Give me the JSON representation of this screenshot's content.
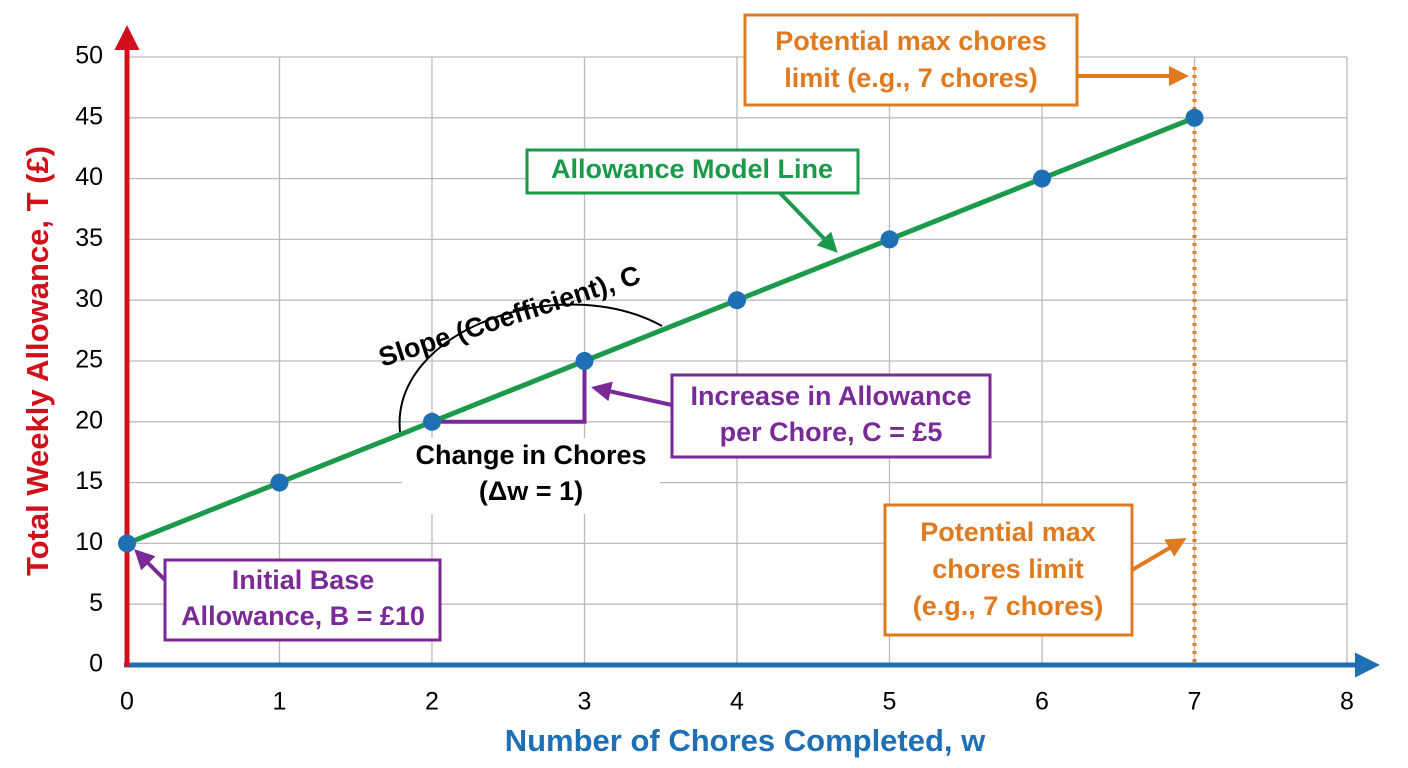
{
  "chart_data": {
    "type": "line",
    "x_label": "Number of Chores Completed, w",
    "y_label": "Total Weekly Allowance, T (£)",
    "x": [
      0,
      1,
      2,
      3,
      4,
      5,
      6,
      7
    ],
    "series": [
      {
        "name": "Allowance Model Line",
        "color": "#1a9a4a",
        "marker_color": "#1f6fb5",
        "values": [
          10,
          15,
          20,
          25,
          30,
          35,
          40,
          45
        ]
      }
    ],
    "xlim": [
      0,
      8
    ],
    "ylim": [
      0,
      50
    ],
    "xticks": [
      0,
      1,
      2,
      3,
      4,
      5,
      6,
      7,
      8
    ],
    "yticks": [
      0,
      5,
      10,
      15,
      20,
      25,
      30,
      35,
      40,
      45,
      50
    ],
    "grid": true,
    "x_axis_color": "#1f6fb5",
    "y_axis_color": "#d0101a",
    "limit_x": 7,
    "limit_color": "#e07a1f",
    "annotations": [
      {
        "lines": [
          "Potential max chores",
          "limit (e.g., 7 chores)"
        ],
        "color": "#e07a1f"
      },
      {
        "lines": [
          "Allowance Model Line"
        ],
        "color": "#1a9a4a"
      },
      {
        "lines": [
          "Slope (Coefficient), C"
        ],
        "color": "#000000"
      },
      {
        "lines": [
          "Increase in Allowance",
          "per Chore, C = £5"
        ],
        "color": "#7a2a96"
      },
      {
        "lines": [
          "Change in Chores",
          "(Δw = 1)"
        ],
        "color": "#000000"
      },
      {
        "lines": [
          "Potential max",
          "chores limit",
          "(e.g., 7 chores)"
        ],
        "color": "#e07a1f"
      },
      {
        "lines": [
          "Initial Base",
          "Allowance, B = £10"
        ],
        "color": "#7a2a96"
      }
    ]
  }
}
